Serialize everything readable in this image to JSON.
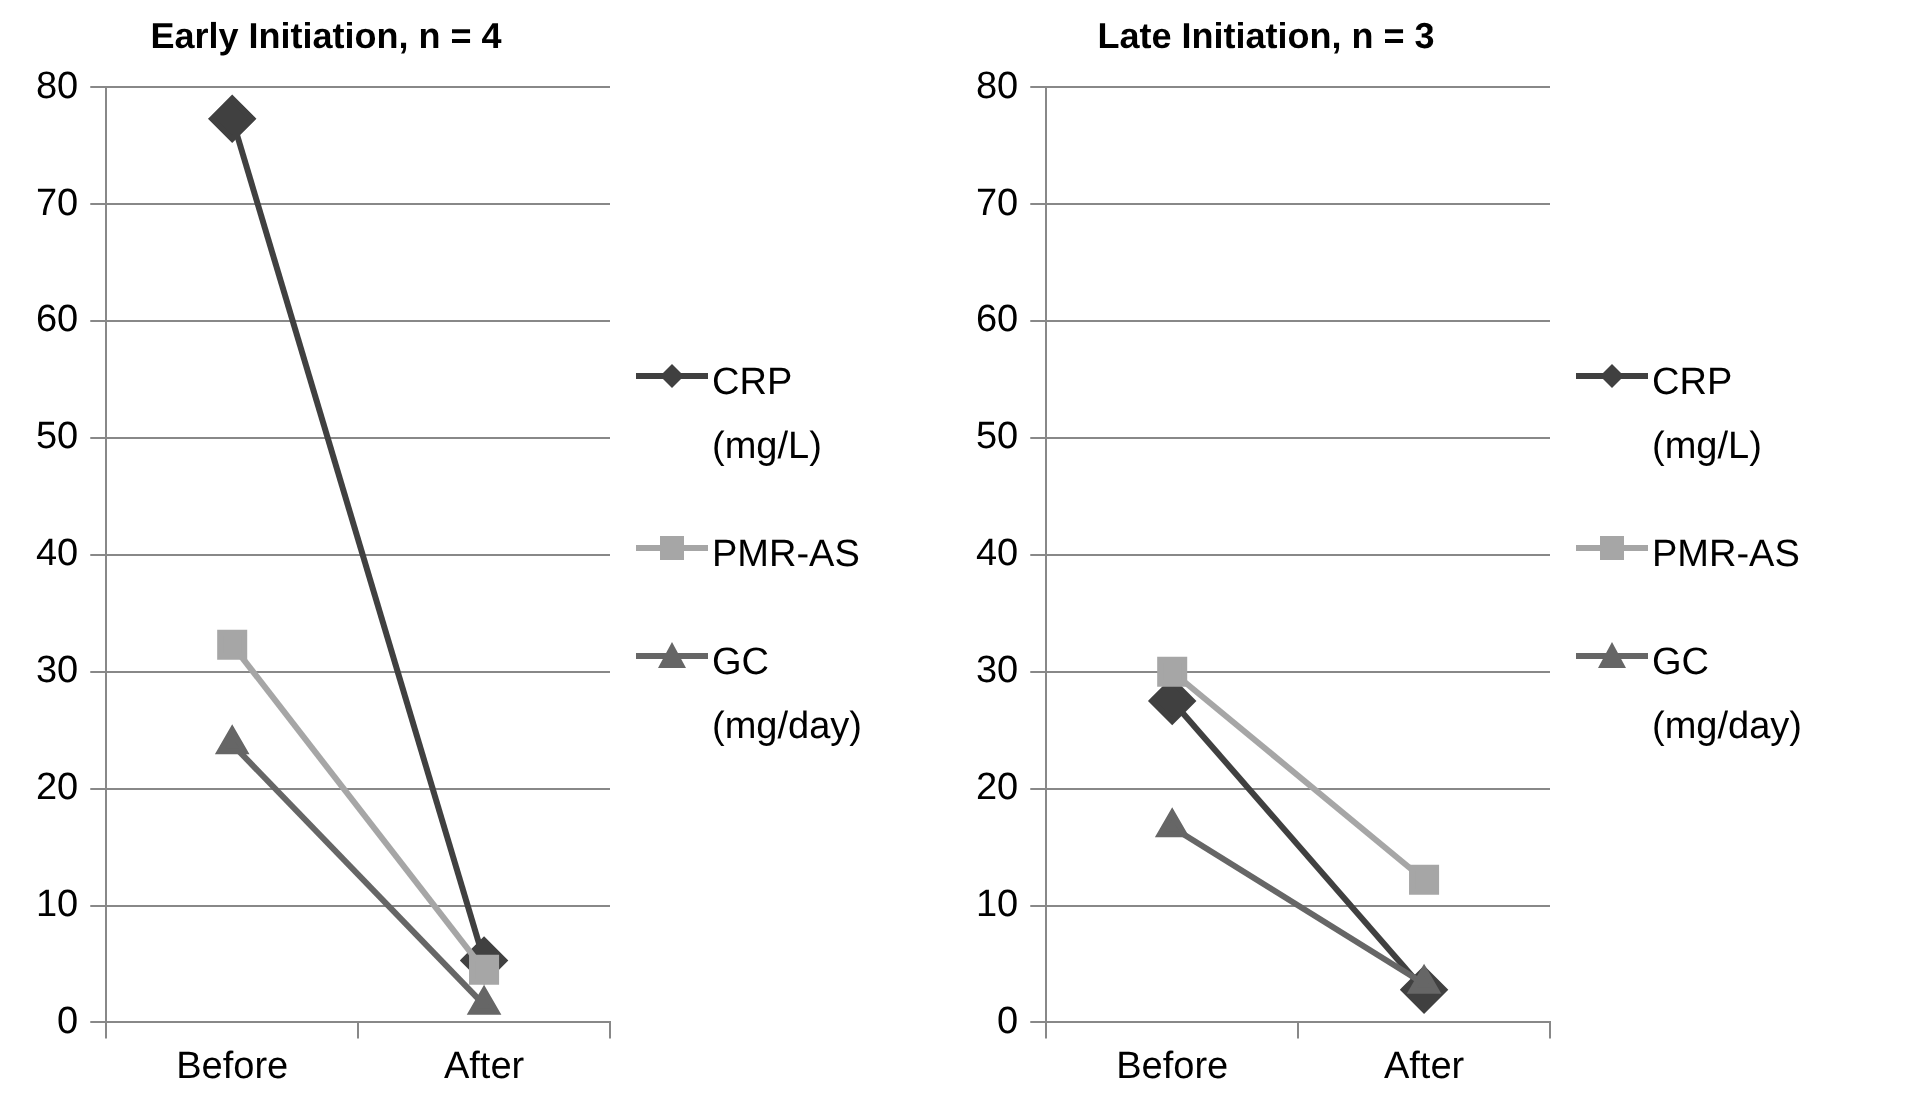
{
  "chart_data": [
    {
      "type": "line",
      "title": "Early Initiation, n = 4",
      "categories": [
        "Before",
        "After"
      ],
      "series": [
        {
          "name": "CRP (mg/L)",
          "color": "#404040",
          "marker": "diamond",
          "values": [
            77.3,
            5.3
          ]
        },
        {
          "name": "PMR-AS",
          "color": "#a6a6a6",
          "marker": "square",
          "values": [
            32.3,
            4.5
          ]
        },
        {
          "name": "GC (mg/day)",
          "color": "#666666",
          "marker": "triangle",
          "values": [
            23.8,
            1.5
          ]
        }
      ],
      "ylim": [
        0,
        80
      ],
      "yticks": [
        0,
        10,
        20,
        30,
        40,
        50,
        60,
        70,
        80
      ],
      "grid": "y",
      "legend": "right"
    },
    {
      "type": "line",
      "title": "Late Initiation, n = 3",
      "categories": [
        "Before",
        "After"
      ],
      "series": [
        {
          "name": "CRP (mg/L)",
          "color": "#404040",
          "marker": "diamond",
          "values": [
            27.5,
            2.8
          ]
        },
        {
          "name": "PMR-AS",
          "color": "#a6a6a6",
          "marker": "square",
          "values": [
            30,
            12.2
          ]
        },
        {
          "name": "GC (mg/day)",
          "color": "#666666",
          "marker": "triangle",
          "values": [
            16.7,
            3.3
          ]
        }
      ],
      "ylim": [
        0,
        80
      ],
      "yticks": [
        0,
        10,
        20,
        30,
        40,
        50,
        60,
        70,
        80
      ],
      "grid": "y",
      "legend": "right"
    }
  ]
}
